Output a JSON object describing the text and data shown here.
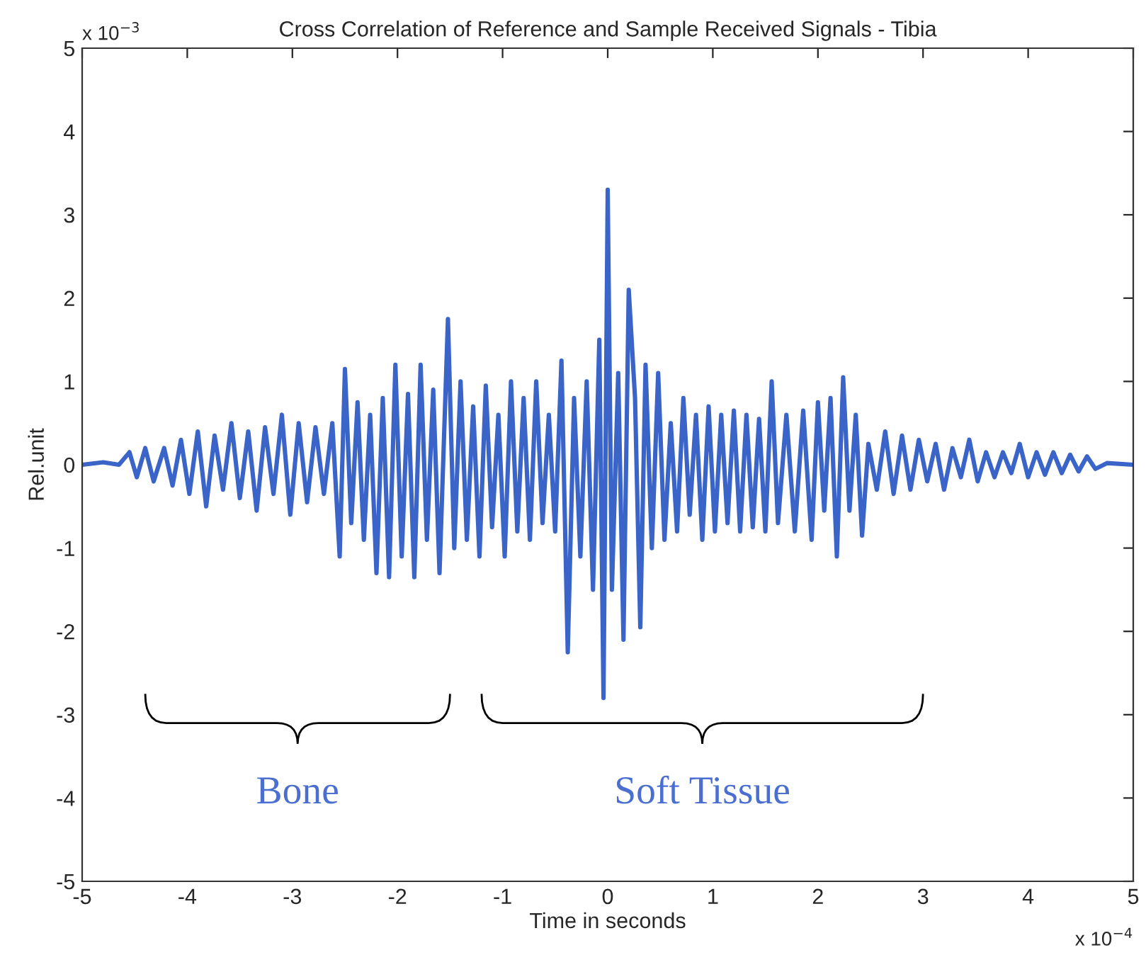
{
  "chart_data": {
    "type": "line",
    "title": "Cross Correlation of Reference and Sample Received Signals - Tibia",
    "xlabel": "Time in seconds",
    "ylabel": "Rel.unit",
    "xlim": [
      -5,
      5
    ],
    "xticks": [
      -5,
      -4,
      -3,
      -2,
      -1,
      0,
      1,
      2,
      3,
      4,
      5
    ],
    "ylim": [
      -5,
      5
    ],
    "yticks": [
      -5,
      -4,
      -3,
      -2,
      -1,
      0,
      1,
      2,
      3,
      4,
      5
    ],
    "grid": false,
    "legend": false,
    "annotations": [
      "x 10$^{−3}$",
      "x 10$^{−4}$",
      "Bone",
      "Soft Tissue"
    ],
    "series": [
      {
        "color": "#3a64c8",
        "x": [
          -5,
          -4.8,
          -4.65,
          -4.55,
          -4.48,
          -4.4,
          -4.32,
          -4.22,
          -4.14,
          -4.06,
          -3.98,
          -3.9,
          -3.82,
          -3.74,
          -3.66,
          -3.58,
          -3.5,
          -3.42,
          -3.34,
          -3.26,
          -3.18,
          -3.1,
          -3.02,
          -2.94,
          -2.86,
          -2.78,
          -2.7,
          -2.62,
          -2.55,
          -2.5,
          -2.44,
          -2.38,
          -2.32,
          -2.26,
          -2.2,
          -2.14,
          -2.08,
          -2.02,
          -1.96,
          -1.9,
          -1.84,
          -1.78,
          -1.72,
          -1.66,
          -1.6,
          -1.52,
          -1.46,
          -1.4,
          -1.34,
          -1.28,
          -1.22,
          -1.16,
          -1.1,
          -1.04,
          -0.98,
          -0.92,
          -0.86,
          -0.8,
          -0.74,
          -0.68,
          -0.62,
          -0.56,
          -0.5,
          -0.44,
          -0.38,
          -0.32,
          -0.26,
          -0.2,
          -0.14,
          -0.08,
          -0.04,
          0.0,
          0.04,
          0.1,
          0.15,
          0.2,
          0.26,
          0.31,
          0.36,
          0.42,
          0.48,
          0.54,
          0.6,
          0.66,
          0.72,
          0.78,
          0.84,
          0.9,
          0.96,
          1.02,
          1.08,
          1.14,
          1.2,
          1.26,
          1.32,
          1.38,
          1.44,
          1.5,
          1.56,
          1.62,
          1.7,
          1.78,
          1.86,
          1.94,
          2.0,
          2.06,
          2.12,
          2.18,
          2.24,
          2.3,
          2.36,
          2.42,
          2.48,
          2.56,
          2.64,
          2.72,
          2.8,
          2.88,
          2.96,
          3.04,
          3.12,
          3.2,
          3.28,
          3.36,
          3.44,
          3.52,
          3.6,
          3.68,
          3.76,
          3.84,
          3.92,
          4.0,
          4.08,
          4.16,
          4.24,
          4.32,
          4.4,
          4.48,
          4.56,
          4.64,
          4.75,
          5.0
        ],
        "values": [
          0,
          0.03,
          0,
          0.15,
          -0.15,
          0.2,
          -0.2,
          0.2,
          -0.25,
          0.3,
          -0.35,
          0.4,
          -0.5,
          0.35,
          -0.3,
          0.5,
          -0.4,
          0.4,
          -0.55,
          0.45,
          -0.35,
          0.6,
          -0.6,
          0.5,
          -0.45,
          0.45,
          -0.35,
          0.5,
          -1.1,
          1.15,
          -0.7,
          0.75,
          -0.9,
          0.6,
          -1.3,
          0.8,
          -1.35,
          1.2,
          -1.1,
          0.85,
          -1.35,
          1.2,
          -0.9,
          0.9,
          -1.3,
          1.75,
          -1.0,
          1.0,
          -0.9,
          0.7,
          -1.1,
          0.95,
          -0.75,
          0.6,
          -1.1,
          1.0,
          -0.8,
          0.8,
          -0.9,
          1.0,
          -0.7,
          0.6,
          -0.8,
          1.25,
          -2.25,
          0.8,
          -1.1,
          1.0,
          -1.5,
          1.5,
          -2.8,
          3.3,
          -1.5,
          1.1,
          -2.1,
          2.1,
          0.8,
          -1.95,
          1.2,
          -1.0,
          1.1,
          -0.9,
          0.5,
          -0.8,
          0.8,
          -0.6,
          0.6,
          -0.9,
          0.7,
          -0.8,
          0.6,
          -0.7,
          0.65,
          -0.8,
          0.6,
          -0.75,
          0.55,
          -0.8,
          1.0,
          -0.7,
          0.6,
          -0.8,
          0.65,
          -0.9,
          0.75,
          -0.55,
          0.8,
          -1.1,
          1.05,
          -0.55,
          0.6,
          -0.85,
          0.25,
          -0.3,
          0.4,
          -0.35,
          0.35,
          -0.3,
          0.3,
          -0.2,
          0.25,
          -0.3,
          0.2,
          -0.15,
          0.3,
          -0.2,
          0.15,
          -0.15,
          0.15,
          -0.1,
          0.25,
          -0.15,
          0.15,
          -0.12,
          0.15,
          -0.1,
          0.12,
          -0.08,
          0.1,
          -0.05,
          0.02,
          0
        ]
      }
    ]
  }
}
